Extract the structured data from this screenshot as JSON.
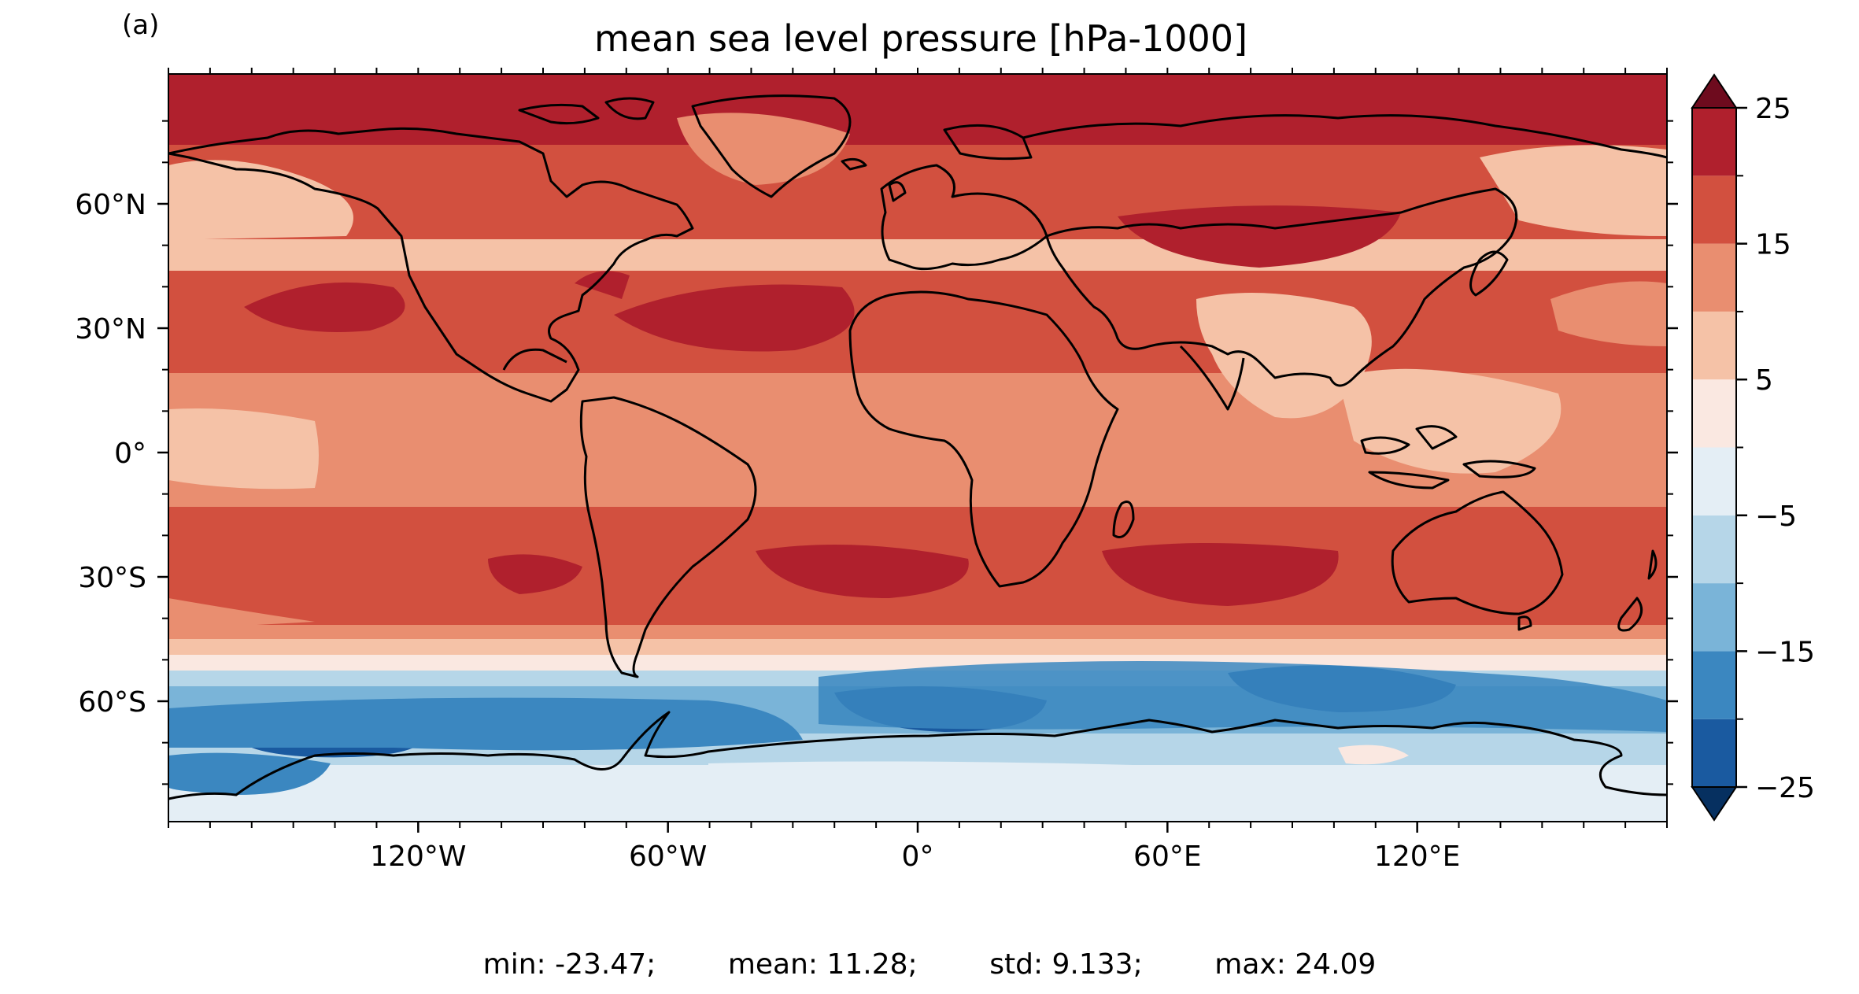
{
  "panel_label": "(a)",
  "title": "mean sea level pressure [hPa-1000]",
  "x_ticks": [
    "120°W",
    "60°W",
    "0°",
    "60°E",
    "120°E"
  ],
  "y_ticks": [
    "60°N",
    "30°N",
    "0°",
    "30°S",
    "60°S"
  ],
  "colorbar": {
    "tick_labels": [
      "25",
      "15",
      "5",
      "−5",
      "−15",
      "−25"
    ],
    "levels": [
      -25,
      -20,
      -15,
      -10,
      -5,
      0,
      5,
      10,
      15,
      20,
      25
    ],
    "colors": [
      "#1a5aa0",
      "#3b87c0",
      "#7ab4d8",
      "#b6d6e8",
      "#e4eef5",
      "#fae8e1",
      "#f5c2a7",
      "#e98e70",
      "#d2503f",
      "#b0202d"
    ],
    "under_color": "#063060",
    "over_color": "#6e0b1e",
    "extend": "both"
  },
  "stats": {
    "min": "min: -23.47;",
    "mean": "mean: 11.28;",
    "std": "std: 9.133;",
    "max": "max: 24.09"
  }
}
